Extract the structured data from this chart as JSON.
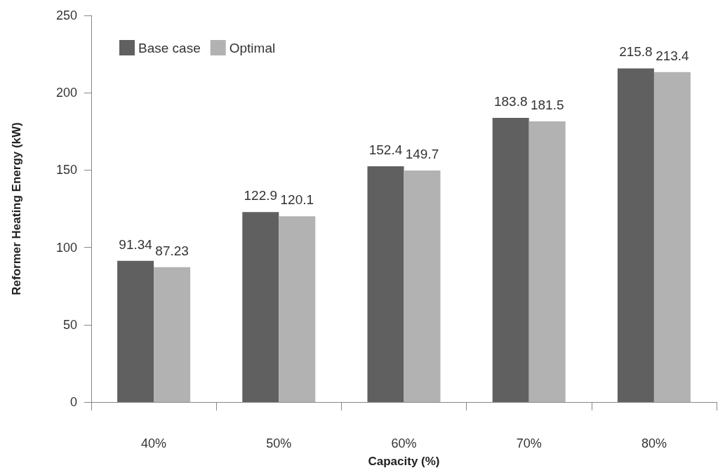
{
  "chart_data": {
    "type": "bar",
    "xlabel": "Capacity (%)",
    "ylabel": "Reformer Heating Energy (kW)",
    "categories": [
      "40%",
      "50%",
      "60%",
      "70%",
      "80%"
    ],
    "series": [
      {
        "name": "Base case",
        "color": "#606060",
        "values": [
          91.34,
          122.9,
          152.4,
          183.8,
          215.8
        ]
      },
      {
        "name": "Optimal",
        "color": "#b2b2b2",
        "values": [
          87.23,
          120.1,
          149.7,
          181.5,
          213.4
        ]
      }
    ],
    "ylim": [
      0,
      250
    ],
    "yticks": [
      0,
      50,
      100,
      150,
      200,
      250
    ],
    "grid": false,
    "legend": "top left",
    "data_labels": true
  }
}
